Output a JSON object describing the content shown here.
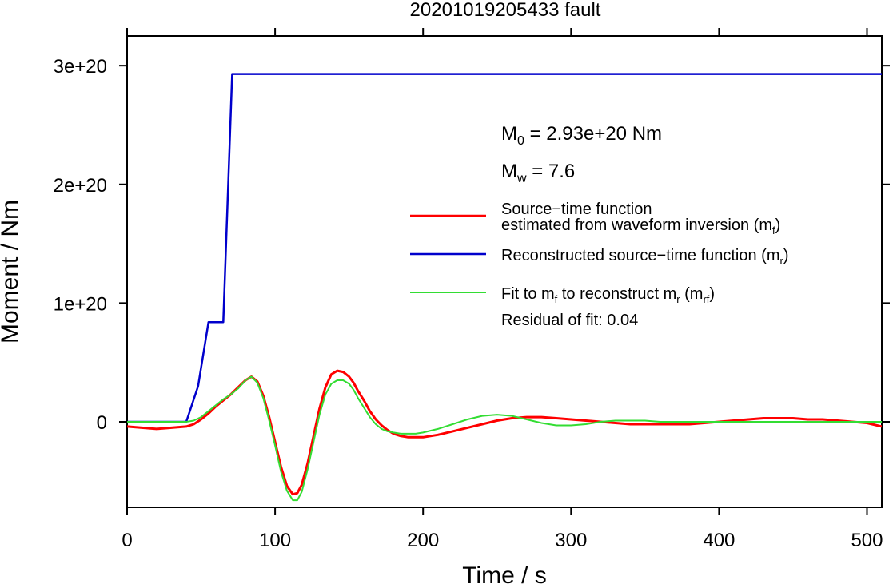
{
  "chart_data": {
    "type": "line",
    "title": "20201019205433 fault",
    "xlabel": "Time / s",
    "ylabel": "Moment / Nm",
    "xlim": [
      0,
      510
    ],
    "ylim": [
      -7.2e+19,
      3.25e+20
    ],
    "x_ticks": [
      0,
      100,
      200,
      300,
      400,
      500
    ],
    "x_tick_labels": [
      "0",
      "100",
      "200",
      "300",
      "400",
      "500"
    ],
    "y_ticks": [
      0,
      1e+20,
      2e+20,
      3e+20
    ],
    "y_tick_labels": [
      "0",
      "1e+20",
      "2e+20",
      "3e+20"
    ],
    "grid": false,
    "annotations": {
      "m0_prefix": "M",
      "m0_sub": "0",
      "m0_value": " = 2.93e+20 Nm",
      "mw_prefix": "M",
      "mw_sub": "w",
      "mw_value": " = 7.6",
      "residual": "Residual of fit: 0.04"
    },
    "legend": {
      "placement": "right",
      "entries": [
        {
          "line1": "Source−time function",
          "line2_text": "estimated from waveform inversion (m",
          "line2_sub": "f",
          "line2_end": ")",
          "color": "#ff0000"
        },
        {
          "text": "Reconstructed source−time function (m",
          "sub": "r",
          "end": ")",
          "color": "#0000cc"
        },
        {
          "text": "Fit to m",
          "sub": "f",
          "text2": " to reconstruct m",
          "sub2": "r",
          "text3": " (m",
          "sub3": "rf",
          "end": ")",
          "color": "#33dd33"
        }
      ]
    },
    "series": [
      {
        "name": "Source−time function estimated from waveform inversion (mf)",
        "color": "#ff0000",
        "x": [
          0,
          10,
          20,
          30,
          40,
          45,
          50,
          55,
          60,
          65,
          70,
          75,
          80,
          84,
          88,
          92,
          96,
          100,
          104,
          108,
          112,
          115,
          118,
          122,
          126,
          130,
          134,
          138,
          142,
          146,
          150,
          153,
          156,
          160,
          164,
          168,
          172,
          176,
          180,
          185,
          190,
          195,
          200,
          210,
          220,
          230,
          240,
          250,
          260,
          270,
          280,
          290,
          300,
          310,
          320,
          330,
          340,
          350,
          360,
          370,
          380,
          390,
          400,
          410,
          420,
          430,
          440,
          450,
          460,
          470,
          480,
          490,
          500,
          510
        ],
        "y": [
          -4e+18,
          -5e+18,
          -6e+18,
          -5e+18,
          -4e+18,
          -2e+18,
          2e+18,
          7e+18,
          1.3e+19,
          1.8e+19,
          2.3e+19,
          2.9e+19,
          3.5e+19,
          3.8e+19,
          3.4e+19,
          2.2e+19,
          4e+18,
          -1.7e+19,
          -3.8e+19,
          -5.4e+19,
          -6.1e+19,
          -6e+19,
          -5.3e+19,
          -3.5e+19,
          -1.2e+19,
          1.1e+19,
          2.9e+19,
          4e+19,
          4.3e+19,
          4.2e+19,
          3.8e+19,
          3.3e+19,
          2.6e+19,
          1.8e+19,
          9e+18,
          2e+18,
          -3e+18,
          -7e+18,
          -1e+19,
          -1.2e+19,
          -1.3e+19,
          -1.3e+19,
          -1.3e+19,
          -1.1e+19,
          -8e+18,
          -5e+18,
          -2e+18,
          1e+18,
          3e+18,
          4e+18,
          4e+18,
          3e+18,
          2e+18,
          1e+18,
          0,
          -1e+18,
          -2e+18,
          -2e+18,
          -2e+18,
          -2e+18,
          -2e+18,
          -1e+18,
          0,
          1e+18,
          2e+18,
          3e+18,
          3e+18,
          3e+18,
          2e+18,
          2e+18,
          1e+18,
          0,
          -1e+18,
          -4e+18
        ]
      },
      {
        "name": "Reconstructed source−time function (mr)",
        "color": "#0000cc",
        "x": [
          0,
          40,
          48,
          55,
          57,
          64,
          65,
          71,
          72,
          510
        ],
        "y": [
          0,
          0,
          3e+19,
          8.4e+19,
          8.4e+19,
          8.4e+19,
          8.4e+19,
          2.93e+20,
          2.93e+20,
          2.93e+20
        ]
      },
      {
        "name": "Fit to mf to reconstruct mr (mrf)",
        "color": "#33dd33",
        "x": [
          0,
          10,
          20,
          30,
          40,
          45,
          50,
          55,
          60,
          65,
          70,
          75,
          80,
          84,
          88,
          92,
          96,
          100,
          104,
          108,
          112,
          115,
          118,
          122,
          126,
          130,
          134,
          138,
          142,
          146,
          150,
          153,
          156,
          160,
          164,
          168,
          172,
          176,
          180,
          185,
          190,
          195,
          200,
          210,
          220,
          230,
          240,
          250,
          260,
          270,
          280,
          290,
          300,
          310,
          320,
          330,
          340,
          350,
          360,
          370,
          380,
          390,
          400,
          450,
          500,
          510
        ],
        "y": [
          0,
          0,
          0,
          0,
          0,
          1e+18,
          4e+18,
          9e+18,
          1.4e+19,
          1.9e+19,
          2.3e+19,
          2.8e+19,
          3.5e+19,
          3.8e+19,
          3.3e+19,
          2e+19,
          1e+18,
          -2e+19,
          -4.2e+19,
          -5.8e+19,
          -6.6e+19,
          -6.6e+19,
          -5.9e+19,
          -4e+19,
          -1.7e+19,
          6e+18,
          2.3e+19,
          3.2e+19,
          3.5e+19,
          3.5e+19,
          3.2e+19,
          2.7e+19,
          2e+19,
          1.2e+19,
          4e+18,
          -2e+18,
          -6e+18,
          -8e+18,
          -9e+18,
          -1e+19,
          -1e+19,
          -1e+19,
          -9e+18,
          -6e+18,
          -2e+18,
          2e+18,
          5e+18,
          6e+18,
          5e+18,
          2e+18,
          -1e+18,
          -3e+18,
          -3e+18,
          -2e+18,
          0,
          1e+18,
          1e+18,
          1e+18,
          0,
          0,
          0,
          0,
          0,
          0,
          0,
          0
        ]
      }
    ]
  }
}
